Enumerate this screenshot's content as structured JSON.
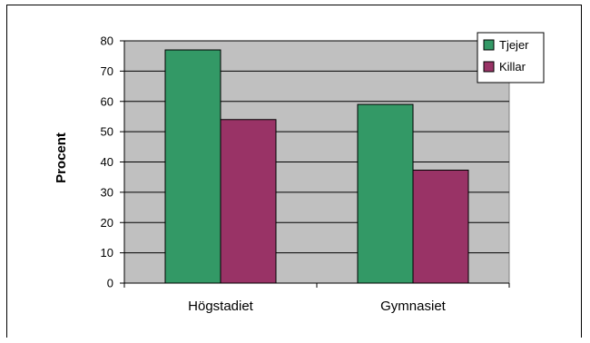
{
  "chart_data": {
    "type": "bar",
    "categories": [
      "Högstadiet",
      "Gymnasiet"
    ],
    "series": [
      {
        "name": "Tjejer",
        "values": [
          77,
          59
        ],
        "color": "#339966"
      },
      {
        "name": "Killar",
        "values": [
          54,
          37.3
        ],
        "color": "#993366"
      }
    ],
    "ylabel": "Procent",
    "xlabel": "",
    "title": "",
    "ylim": [
      0,
      80
    ],
    "yticks": [
      0,
      10,
      20,
      30,
      40,
      50,
      60,
      70,
      80
    ],
    "grid": true,
    "plot_background": "#c0c0c0",
    "legend_position": "top-right"
  }
}
